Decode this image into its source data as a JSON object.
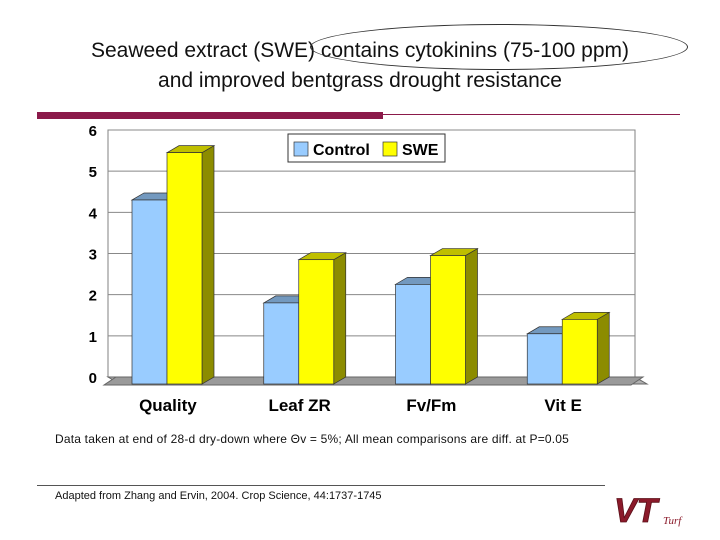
{
  "slide": {
    "title_line1": "Seaweed extract (SWE) contains cytokinins (75-100 ppm)",
    "title_line2": "and improved bentgrass drought resistance",
    "note": "Data taken at end of 28-d dry-down where Θv = 5%; All mean comparisons are diff. at P=0.05",
    "source": "Adapted from Zhang and Ervin, 2004. Crop Science, 44:1737-1745",
    "logo": {
      "text": "VT",
      "subtext": "Turf"
    }
  },
  "colors": {
    "control": "#99ccff",
    "swe": "#ffff00",
    "accent": "#8b1a4a",
    "logo": "#8b1a2a"
  },
  "chart_data": {
    "type": "bar",
    "categories": [
      "Quality",
      "Leaf ZR",
      "Fv/Fm",
      "Vit E"
    ],
    "series": [
      {
        "name": "Control",
        "values": [
          4.3,
          1.8,
          2.25,
          1.05
        ]
      },
      {
        "name": "SWE",
        "values": [
          5.45,
          2.85,
          2.95,
          1.4
        ]
      }
    ],
    "yticks": [
      0,
      1,
      2,
      3,
      4,
      5,
      6
    ],
    "ylim": [
      0,
      6
    ],
    "grid": true,
    "legend": "top-center",
    "bar_style": "3d"
  }
}
